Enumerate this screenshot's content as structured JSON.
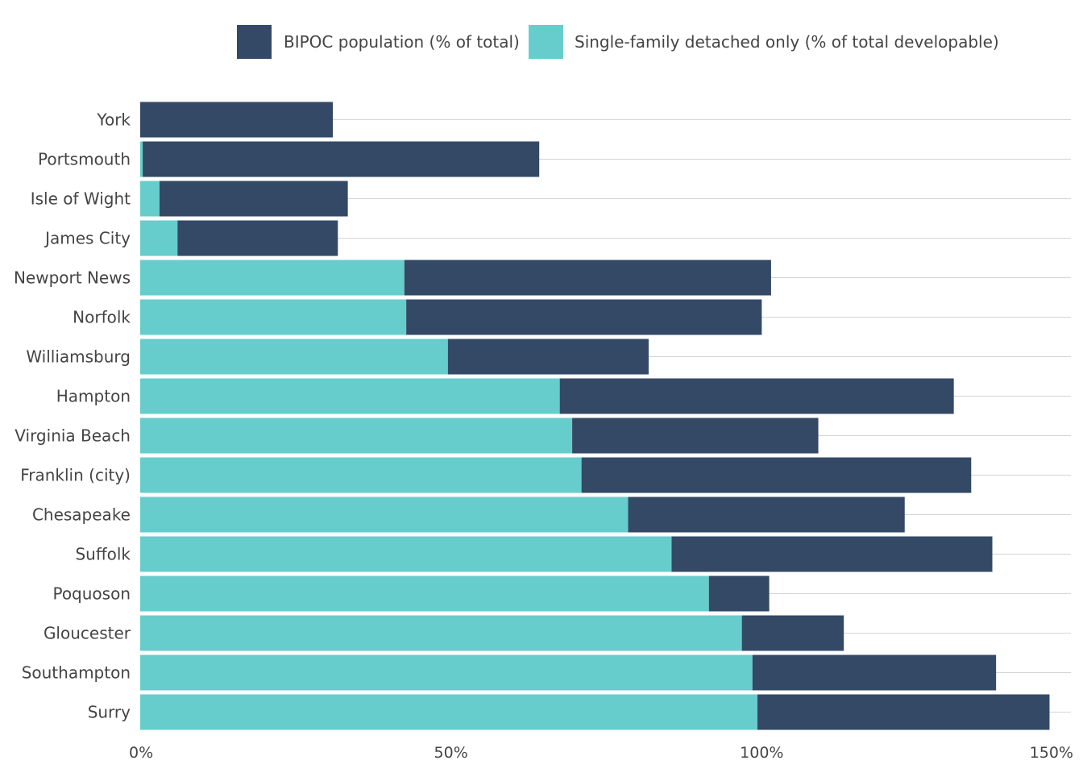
{
  "chart_data": {
    "type": "bar",
    "orientation": "horizontal",
    "stacked": true,
    "categories": [
      "York",
      "Portsmouth",
      "Isle of Wight",
      "James City",
      "Newport News",
      "Norfolk",
      "Williamsburg",
      "Hampton",
      "Virginia Beach",
      "Franklin (city)",
      "Chesapeake",
      "Suffolk",
      "Poquoson",
      "Gloucester",
      "Southampton",
      "Surry"
    ],
    "series": [
      {
        "name": "Single-family detached only (% of total developable)",
        "color": "#66cdcc",
        "values": [
          0,
          0.4,
          3.1,
          6.0,
          42.5,
          42.8,
          49.5,
          67.5,
          69.5,
          71.0,
          78.5,
          85.5,
          91.5,
          96.8,
          98.5,
          99.3
        ]
      },
      {
        "name": "BIPOC population (% of total)",
        "color": "#334966",
        "values": [
          31.0,
          63.8,
          30.3,
          25.8,
          59.0,
          57.2,
          32.3,
          63.4,
          39.6,
          62.7,
          44.5,
          51.6,
          9.7,
          16.4,
          39.2,
          47.0
        ]
      }
    ],
    "legend": {
      "placement": "top-center",
      "order": [
        1,
        0
      ]
    },
    "x_axis": {
      "range": [
        0,
        150
      ],
      "ticks": [
        0,
        50,
        100,
        150
      ],
      "tick_labels": [
        "0%",
        "50%",
        "100%",
        "150%"
      ]
    },
    "title": "",
    "xlabel": "",
    "ylabel": "",
    "grid": "horizontal lines at each category"
  }
}
